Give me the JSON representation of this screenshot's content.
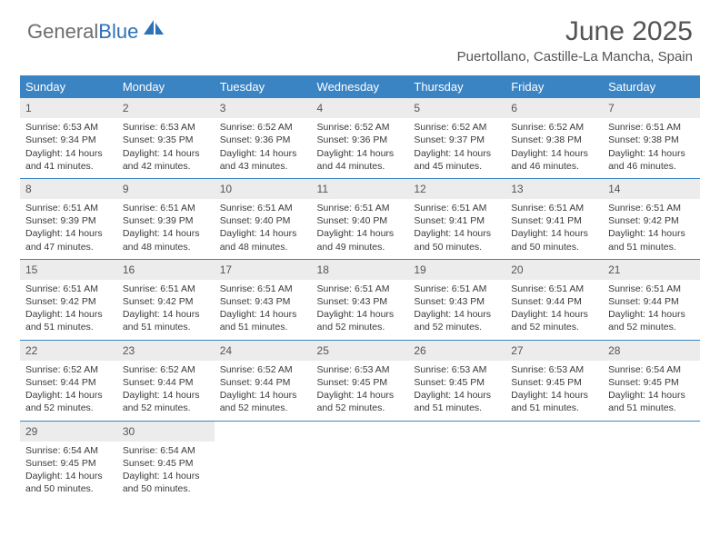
{
  "brand": {
    "part1": "General",
    "part2": "Blue"
  },
  "header": {
    "title": "June 2025",
    "location": "Puertollano, Castille-La Mancha, Spain"
  },
  "styling": {
    "header_bg": "#3b84c4",
    "header_text": "#ffffff",
    "daynum_bg": "#ececec",
    "row_divider": "#3b84c4",
    "body_text": "#3a3a3a",
    "title_fontsize": 30,
    "location_fontsize": 15,
    "cell_fontsize": 10.5,
    "columns": 7,
    "rows": 5
  },
  "weekdays": [
    "Sunday",
    "Monday",
    "Tuesday",
    "Wednesday",
    "Thursday",
    "Friday",
    "Saturday"
  ],
  "days": [
    {
      "n": "1",
      "sr": "Sunrise: 6:53 AM",
      "ss": "Sunset: 9:34 PM",
      "d1": "Daylight: 14 hours",
      "d2": "and 41 minutes."
    },
    {
      "n": "2",
      "sr": "Sunrise: 6:53 AM",
      "ss": "Sunset: 9:35 PM",
      "d1": "Daylight: 14 hours",
      "d2": "and 42 minutes."
    },
    {
      "n": "3",
      "sr": "Sunrise: 6:52 AM",
      "ss": "Sunset: 9:36 PM",
      "d1": "Daylight: 14 hours",
      "d2": "and 43 minutes."
    },
    {
      "n": "4",
      "sr": "Sunrise: 6:52 AM",
      "ss": "Sunset: 9:36 PM",
      "d1": "Daylight: 14 hours",
      "d2": "and 44 minutes."
    },
    {
      "n": "5",
      "sr": "Sunrise: 6:52 AM",
      "ss": "Sunset: 9:37 PM",
      "d1": "Daylight: 14 hours",
      "d2": "and 45 minutes."
    },
    {
      "n": "6",
      "sr": "Sunrise: 6:52 AM",
      "ss": "Sunset: 9:38 PM",
      "d1": "Daylight: 14 hours",
      "d2": "and 46 minutes."
    },
    {
      "n": "7",
      "sr": "Sunrise: 6:51 AM",
      "ss": "Sunset: 9:38 PM",
      "d1": "Daylight: 14 hours",
      "d2": "and 46 minutes."
    },
    {
      "n": "8",
      "sr": "Sunrise: 6:51 AM",
      "ss": "Sunset: 9:39 PM",
      "d1": "Daylight: 14 hours",
      "d2": "and 47 minutes."
    },
    {
      "n": "9",
      "sr": "Sunrise: 6:51 AM",
      "ss": "Sunset: 9:39 PM",
      "d1": "Daylight: 14 hours",
      "d2": "and 48 minutes."
    },
    {
      "n": "10",
      "sr": "Sunrise: 6:51 AM",
      "ss": "Sunset: 9:40 PM",
      "d1": "Daylight: 14 hours",
      "d2": "and 48 minutes."
    },
    {
      "n": "11",
      "sr": "Sunrise: 6:51 AM",
      "ss": "Sunset: 9:40 PM",
      "d1": "Daylight: 14 hours",
      "d2": "and 49 minutes."
    },
    {
      "n": "12",
      "sr": "Sunrise: 6:51 AM",
      "ss": "Sunset: 9:41 PM",
      "d1": "Daylight: 14 hours",
      "d2": "and 50 minutes."
    },
    {
      "n": "13",
      "sr": "Sunrise: 6:51 AM",
      "ss": "Sunset: 9:41 PM",
      "d1": "Daylight: 14 hours",
      "d2": "and 50 minutes."
    },
    {
      "n": "14",
      "sr": "Sunrise: 6:51 AM",
      "ss": "Sunset: 9:42 PM",
      "d1": "Daylight: 14 hours",
      "d2": "and 51 minutes."
    },
    {
      "n": "15",
      "sr": "Sunrise: 6:51 AM",
      "ss": "Sunset: 9:42 PM",
      "d1": "Daylight: 14 hours",
      "d2": "and 51 minutes."
    },
    {
      "n": "16",
      "sr": "Sunrise: 6:51 AM",
      "ss": "Sunset: 9:42 PM",
      "d1": "Daylight: 14 hours",
      "d2": "and 51 minutes."
    },
    {
      "n": "17",
      "sr": "Sunrise: 6:51 AM",
      "ss": "Sunset: 9:43 PM",
      "d1": "Daylight: 14 hours",
      "d2": "and 51 minutes."
    },
    {
      "n": "18",
      "sr": "Sunrise: 6:51 AM",
      "ss": "Sunset: 9:43 PM",
      "d1": "Daylight: 14 hours",
      "d2": "and 52 minutes."
    },
    {
      "n": "19",
      "sr": "Sunrise: 6:51 AM",
      "ss": "Sunset: 9:43 PM",
      "d1": "Daylight: 14 hours",
      "d2": "and 52 minutes."
    },
    {
      "n": "20",
      "sr": "Sunrise: 6:51 AM",
      "ss": "Sunset: 9:44 PM",
      "d1": "Daylight: 14 hours",
      "d2": "and 52 minutes."
    },
    {
      "n": "21",
      "sr": "Sunrise: 6:51 AM",
      "ss": "Sunset: 9:44 PM",
      "d1": "Daylight: 14 hours",
      "d2": "and 52 minutes."
    },
    {
      "n": "22",
      "sr": "Sunrise: 6:52 AM",
      "ss": "Sunset: 9:44 PM",
      "d1": "Daylight: 14 hours",
      "d2": "and 52 minutes."
    },
    {
      "n": "23",
      "sr": "Sunrise: 6:52 AM",
      "ss": "Sunset: 9:44 PM",
      "d1": "Daylight: 14 hours",
      "d2": "and 52 minutes."
    },
    {
      "n": "24",
      "sr": "Sunrise: 6:52 AM",
      "ss": "Sunset: 9:44 PM",
      "d1": "Daylight: 14 hours",
      "d2": "and 52 minutes."
    },
    {
      "n": "25",
      "sr": "Sunrise: 6:53 AM",
      "ss": "Sunset: 9:45 PM",
      "d1": "Daylight: 14 hours",
      "d2": "and 52 minutes."
    },
    {
      "n": "26",
      "sr": "Sunrise: 6:53 AM",
      "ss": "Sunset: 9:45 PM",
      "d1": "Daylight: 14 hours",
      "d2": "and 51 minutes."
    },
    {
      "n": "27",
      "sr": "Sunrise: 6:53 AM",
      "ss": "Sunset: 9:45 PM",
      "d1": "Daylight: 14 hours",
      "d2": "and 51 minutes."
    },
    {
      "n": "28",
      "sr": "Sunrise: 6:54 AM",
      "ss": "Sunset: 9:45 PM",
      "d1": "Daylight: 14 hours",
      "d2": "and 51 minutes."
    },
    {
      "n": "29",
      "sr": "Sunrise: 6:54 AM",
      "ss": "Sunset: 9:45 PM",
      "d1": "Daylight: 14 hours",
      "d2": "and 50 minutes."
    },
    {
      "n": "30",
      "sr": "Sunrise: 6:54 AM",
      "ss": "Sunset: 9:45 PM",
      "d1": "Daylight: 14 hours",
      "d2": "and 50 minutes."
    }
  ]
}
